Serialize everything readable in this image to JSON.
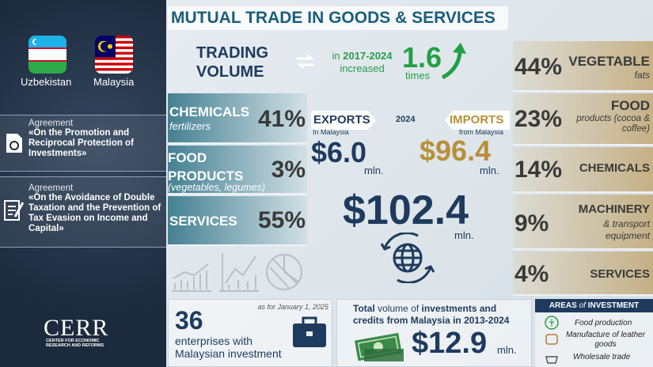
{
  "countries": [
    {
      "name": "Uzbekistan"
    },
    {
      "name": "Malaysia"
    }
  ],
  "agreements": [
    {
      "label": "Agreement",
      "title": "«On the Promotion and Reciprocal Protection of Investments»"
    },
    {
      "label": "Agreement",
      "title": "«On the Avoidance of Double Taxation and the Prevention of Tax Evasion on Income and Capital»"
    }
  ],
  "logo": {
    "name": "CERR",
    "subtitle": "CENTER FOR ECONOMIC RESEARCH AND REFORMS"
  },
  "title": "MUTUAL TRADE IN GOODS & SERVICES",
  "trading_volume": {
    "label": "TRADING VOLUME",
    "prefix": "in",
    "period": "2017-2024",
    "suffix": "increased",
    "multiplier": "1.6",
    "unit": "times"
  },
  "exports_structure": [
    {
      "name": "CHEMICALS",
      "detail": "fertilizers",
      "share": "41%"
    },
    {
      "name": "FOOD PRODUCTS",
      "detail": "(vegetables, legumes)",
      "share": "3%"
    },
    {
      "name": "SERVICES",
      "share": "55%"
    }
  ],
  "exports": {
    "label": "EXPORTS",
    "sub": "In Malaysia",
    "value": "$6.0",
    "unit": "mln."
  },
  "year": "2024",
  "imports": {
    "label": "IMPORTS",
    "sub": "from Malaysia",
    "value": "$96.4",
    "unit": "mln."
  },
  "total": {
    "value": "$102.4",
    "unit": "mln."
  },
  "imports_structure": [
    {
      "share": "44%",
      "name": "VEGETABLE",
      "detail": "fats"
    },
    {
      "share": "23%",
      "name": "FOOD",
      "detail": "products (cocoa & coffee)"
    },
    {
      "share": "14%",
      "name": "CHEMICALS"
    },
    {
      "share": "9%",
      "name": "MACHINERY",
      "detail": "& transport equipment"
    },
    {
      "share": "4%",
      "name": "SERVICES"
    }
  ],
  "enterprises": {
    "note": "as for January 1, 2025",
    "count": "36",
    "text": "enterprises with Malaysian investment"
  },
  "investments": {
    "bold1": "Total",
    "text1": "volume of",
    "bold2": "investments and credits",
    "text2": "from Malaysia in",
    "period": "2013-2024",
    "value": "$12.9",
    "unit": "mln."
  },
  "areas": {
    "title1": "AREAS",
    "title2": "of",
    "title3": "INVESTMENT",
    "items": [
      "Food production",
      "Manufacture of leather goods",
      "Wholesale trade"
    ]
  }
}
